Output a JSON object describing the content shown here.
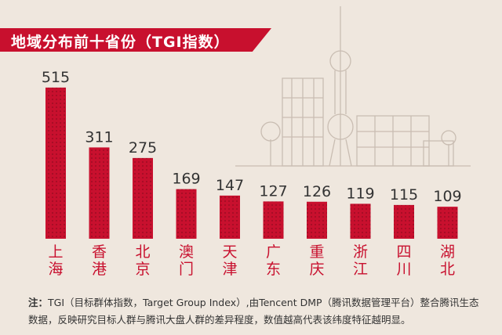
{
  "header": {
    "title": "地域分布前十省份（TGI指数）"
  },
  "chart_data": {
    "type": "bar",
    "categories": [
      "上海",
      "香港",
      "北京",
      "澳门",
      "天津",
      "广东",
      "重庆",
      "浙江",
      "四川",
      "湖北"
    ],
    "values": [
      515,
      311,
      275,
      169,
      147,
      127,
      126,
      119,
      115,
      109
    ],
    "ylim": [
      0,
      560
    ],
    "grid": false,
    "bar_color": "#c8102e",
    "label_color": "#c8102e",
    "value_color": "#333333"
  },
  "footnote": {
    "label": "注：",
    "text": "TGI（目标群体指数，Target Group Index）,由Tencent DMP（腾讯数据管理平台）整合腾讯生态数据，反映研究目标人群与腾讯大盘人群的差异程度，数值越高代表该纬度特征越明显。"
  }
}
